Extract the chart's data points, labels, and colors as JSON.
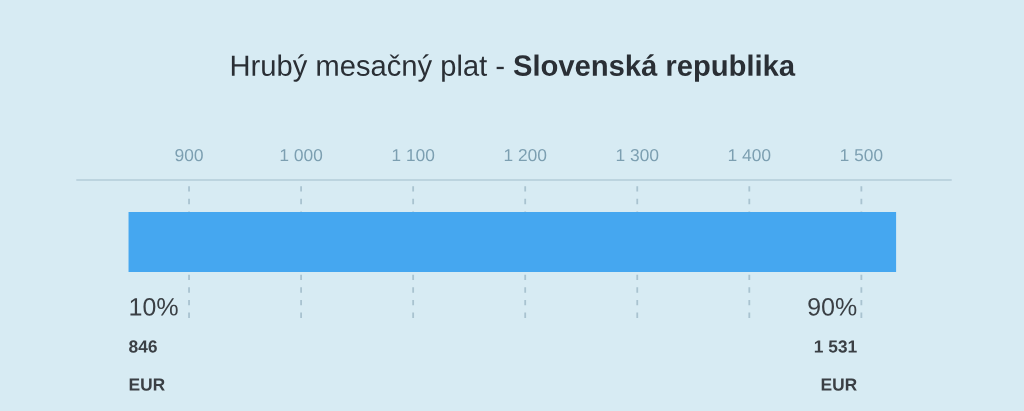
{
  "chart_data": {
    "type": "bar",
    "orientation": "horizontal",
    "title": "Hrubý mesačný plat -",
    "subtitle": "Slovenská republika",
    "categories": [
      null
    ],
    "values": [
      685
    ],
    "base": [
      846
    ],
    "color": "#45a7f0",
    "xlim": [
      800,
      1580
    ],
    "xticks": [
      900,
      {
        "value": 1000,
        "label": "1 000"
      },
      {
        "value": 1100,
        "label": "1 100"
      },
      {
        "value": 1200,
        "label": "1 200"
      },
      {
        "value": 1300,
        "label": "1 300"
      },
      {
        "value": 1400,
        "label": "1 400"
      },
      {
        "value": 1500,
        "label": "1 500"
      }
    ],
    "grid": "x",
    "tick_labels": "x",
    "annotations": [
      "10%",
      "846",
      "EUR",
      "90%",
      "1 531",
      "EUR"
    ]
  }
}
